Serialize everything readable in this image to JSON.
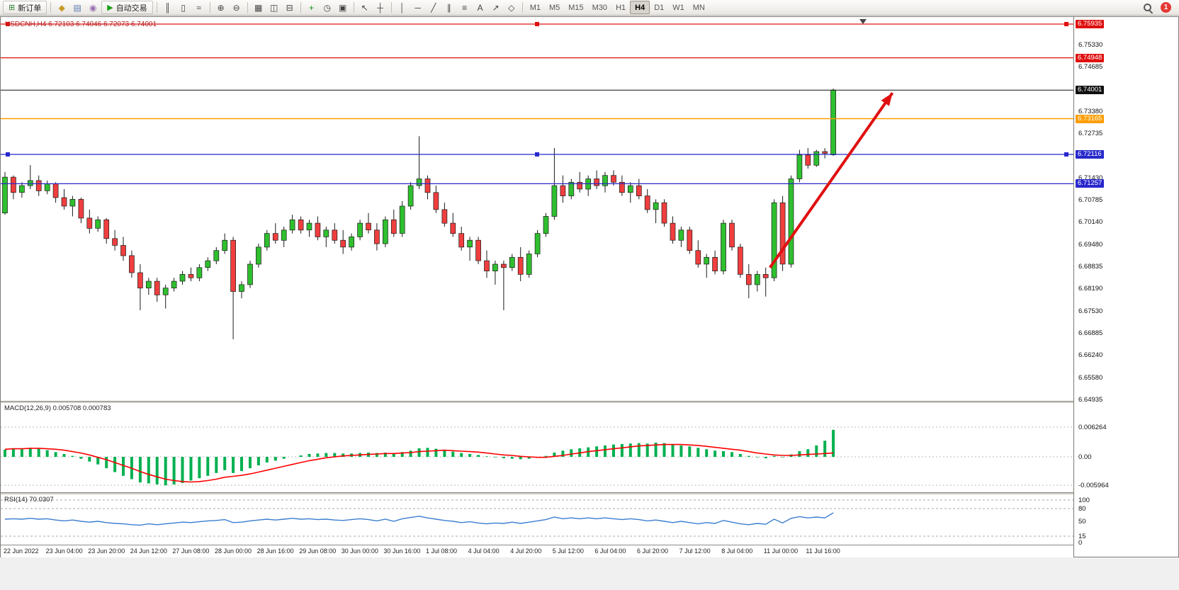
{
  "toolbar": {
    "new_order": "新订单",
    "auto_trading": "自动交易",
    "notification_count": "1",
    "timeframes": [
      "M1",
      "M5",
      "M15",
      "M30",
      "H1",
      "H4",
      "D1",
      "W1",
      "MN"
    ],
    "active_timeframe": "H4",
    "icon_groups": [
      {
        "name": "system-icons",
        "icons": [
          {
            "name": "market-watch-icon",
            "glyph": "◆",
            "color": "#c89b2a"
          },
          {
            "name": "data-window-icon",
            "glyph": "▤",
            "color": "#5a79b5"
          },
          {
            "name": "terminal-icon",
            "glyph": "◉",
            "color": "#9a6fb0"
          }
        ]
      },
      {
        "name": "chart-type-icons",
        "icons": [
          {
            "name": "bar-chart-icon",
            "glyph": "║",
            "color": "#444444"
          },
          {
            "name": "candlestick-chart-icon",
            "glyph": "▯",
            "color": "#444444"
          },
          {
            "name": "line-chart-icon",
            "glyph": "≈",
            "color": "#444444"
          }
        ]
      },
      {
        "name": "zoom-icons",
        "icons": [
          {
            "name": "zoom-in-icon",
            "glyph": "⊕",
            "color": "#444444"
          },
          {
            "name": "zoom-out-icon",
            "glyph": "⊖",
            "color": "#444444"
          }
        ]
      },
      {
        "name": "window-icons",
        "icons": [
          {
            "name": "tile-windows-icon",
            "glyph": "▦",
            "color": "#444444"
          },
          {
            "name": "cascade-windows-icon",
            "glyph": "◫",
            "color": "#444444"
          },
          {
            "name": "arrange-windows-icon",
            "glyph": "⊟",
            "color": "#444444"
          }
        ]
      },
      {
        "name": "indicator-icons",
        "icons": [
          {
            "name": "indicators-icon",
            "glyph": "+",
            "color": "#0b8f0b"
          },
          {
            "name": "periods-icon",
            "glyph": "◷",
            "color": "#444444"
          },
          {
            "name": "templates-icon",
            "glyph": "▣",
            "color": "#444444"
          }
        ]
      },
      {
        "name": "cursor-icons",
        "icons": [
          {
            "name": "cursor-icon",
            "glyph": "↖",
            "color": "#444444"
          },
          {
            "name": "crosshair-icon",
            "glyph": "┼",
            "color": "#444444"
          }
        ]
      },
      {
        "name": "drawing-icons",
        "icons": [
          {
            "name": "vertical-line-icon",
            "glyph": "│",
            "color": "#444444"
          },
          {
            "name": "horizontal-line-icon",
            "glyph": "─",
            "color": "#444444"
          },
          {
            "name": "trendline-icon",
            "glyph": "╱",
            "color": "#444444"
          },
          {
            "name": "channel-icon",
            "glyph": "∥",
            "color": "#444444"
          },
          {
            "name": "fibonacci-icon",
            "glyph": "≡",
            "color": "#444444"
          },
          {
            "name": "text-icon",
            "glyph": "A",
            "color": "#444444"
          },
          {
            "name": "arrows-icon",
            "glyph": "↗",
            "color": "#444444"
          },
          {
            "name": "shapes-icon",
            "glyph": "◇",
            "color": "#444444"
          }
        ]
      }
    ]
  },
  "chart": {
    "symbol_line": "USDCNH,H4 6.72103 6.74046 6.72073 6.74001",
    "scale": {
      "max": 6.75935,
      "min": 6.64935
    },
    "hlines": [
      {
        "price": 6.75935,
        "color": "#e01010",
        "selected": true,
        "badge": true,
        "width": 1.2
      },
      {
        "price": 6.74948,
        "color": "#e01010",
        "selected": false,
        "badge": true,
        "width": 1.2
      },
      {
        "price": 6.74001,
        "color": "#111111",
        "selected": false,
        "badge": true,
        "width": 1
      },
      {
        "price": 6.73165,
        "color": "#ff9d00",
        "selected": false,
        "badge": true,
        "width": 1.6
      },
      {
        "price": 6.72116,
        "color": "#2828cc",
        "selected": true,
        "badge": true,
        "width": 1.2
      },
      {
        "price": 6.71257,
        "color": "#2828cc",
        "selected": false,
        "badge": true,
        "width": 1.2
      }
    ],
    "price_ticks": [
      "6.75330",
      "6.74685",
      "6.73380",
      "6.72735",
      "6.71430",
      "6.70785",
      "6.70140",
      "6.69480",
      "6.68835",
      "6.68190",
      "6.67530",
      "6.66885",
      "6.66240",
      "6.65580",
      "6.64935"
    ]
  },
  "macd": {
    "label": "MACD(12,26,9) 0.005708 0.000783"
  },
  "rsi": {
    "label": "RSI(14) 70.0307"
  },
  "chart_data": {
    "type": "candlestick",
    "symbol": "USDCNH",
    "timeframe": "H4",
    "ohlc_current": {
      "open": 6.72103,
      "high": 6.74046,
      "low": 6.72073,
      "close": 6.74001
    },
    "colors": {
      "up": "#2fbf2f",
      "down": "#f03e3e",
      "wick": "#1a1a1a"
    },
    "x_labels": [
      "22 Jun 2022",
      "23 Jun 04:00",
      "23 Jun 20:00",
      "24 Jun 12:00",
      "27 Jun 08:00",
      "28 Jun 00:00",
      "28 Jun 16:00",
      "29 Jun 08:00",
      "30 Jun 00:00",
      "30 Jun 16:00",
      "1 Jul 08:00",
      "4 Jul 04:00",
      "4 Jul 20:00",
      "5 Jul 12:00",
      "6 Jul 04:00",
      "6 Jul 20:00",
      "7 Jul 12:00",
      "8 Jul 04:00",
      "11 Jul 00:00",
      "11 Jul 16:00"
    ],
    "candles": [
      [
        6.704,
        6.716,
        6.7035,
        6.7145
      ],
      [
        6.7145,
        6.715,
        6.708,
        6.71
      ],
      [
        6.71,
        6.713,
        6.7085,
        6.712
      ],
      [
        6.712,
        6.718,
        6.711,
        6.7135
      ],
      [
        6.7135,
        6.715,
        6.709,
        6.7105
      ],
      [
        6.7105,
        6.7135,
        6.7095,
        6.7125
      ],
      [
        6.7125,
        6.713,
        6.707,
        6.7085
      ],
      [
        6.7085,
        6.711,
        6.705,
        6.706
      ],
      [
        6.706,
        6.709,
        6.703,
        6.708
      ],
      [
        6.708,
        6.7085,
        6.701,
        6.7025
      ],
      [
        6.7025,
        6.705,
        6.698,
        6.6995
      ],
      [
        6.6995,
        6.703,
        6.6985,
        6.702
      ],
      [
        6.702,
        6.7025,
        6.695,
        6.6965
      ],
      [
        6.6965,
        6.699,
        6.693,
        6.6945
      ],
      [
        6.6945,
        6.697,
        6.69,
        6.6915
      ],
      [
        6.6915,
        6.693,
        6.685,
        6.6865
      ],
      [
        6.6865,
        6.689,
        6.6755,
        6.682
      ],
      [
        6.682,
        6.685,
        6.68,
        6.684
      ],
      [
        6.684,
        6.685,
        6.678,
        6.68
      ],
      [
        6.68,
        6.683,
        6.676,
        6.682
      ],
      [
        6.682,
        6.685,
        6.681,
        6.684
      ],
      [
        6.684,
        6.687,
        6.683,
        6.686
      ],
      [
        6.686,
        6.688,
        6.684,
        6.685
      ],
      [
        6.685,
        6.689,
        6.684,
        6.688
      ],
      [
        6.688,
        6.691,
        6.687,
        6.69
      ],
      [
        6.69,
        6.694,
        6.689,
        6.693
      ],
      [
        6.693,
        6.698,
        6.692,
        6.696
      ],
      [
        6.696,
        6.697,
        6.667,
        6.681
      ],
      [
        6.681,
        6.684,
        6.679,
        6.683
      ],
      [
        6.683,
        6.69,
        6.682,
        6.689
      ],
      [
        6.689,
        6.695,
        6.688,
        6.694
      ],
      [
        6.694,
        6.699,
        6.693,
        6.698
      ],
      [
        6.698,
        6.701,
        6.695,
        6.696
      ],
      [
        6.696,
        6.7,
        6.694,
        6.699
      ],
      [
        6.699,
        6.7035,
        6.698,
        6.702
      ],
      [
        6.702,
        6.703,
        6.698,
        6.699
      ],
      [
        6.699,
        6.702,
        6.697,
        6.701
      ],
      [
        6.701,
        6.703,
        6.696,
        6.697
      ],
      [
        6.697,
        6.7,
        6.694,
        6.699
      ],
      [
        6.699,
        6.701,
        6.695,
        6.696
      ],
      [
        6.696,
        6.699,
        6.692,
        6.694
      ],
      [
        6.694,
        6.698,
        6.693,
        6.697
      ],
      [
        6.697,
        6.702,
        6.696,
        6.701
      ],
      [
        6.701,
        6.704,
        6.698,
        6.699
      ],
      [
        6.699,
        6.701,
        6.693,
        6.695
      ],
      [
        6.695,
        6.703,
        6.694,
        6.702
      ],
      [
        6.702,
        6.705,
        6.697,
        6.698
      ],
      [
        6.698,
        6.7075,
        6.697,
        6.706
      ],
      [
        6.706,
        6.713,
        6.705,
        6.712
      ],
      [
        6.712,
        6.7265,
        6.711,
        6.714
      ],
      [
        6.714,
        6.715,
        6.708,
        6.71
      ],
      [
        6.71,
        6.712,
        6.704,
        6.705
      ],
      [
        6.705,
        6.707,
        6.7,
        6.701
      ],
      [
        6.701,
        6.704,
        6.697,
        6.698
      ],
      [
        6.698,
        6.7,
        6.693,
        6.694
      ],
      [
        6.694,
        6.697,
        6.69,
        6.696
      ],
      [
        6.696,
        6.697,
        6.689,
        6.69
      ],
      [
        6.69,
        6.693,
        6.685,
        6.687
      ],
      [
        6.687,
        6.69,
        6.683,
        6.689
      ],
      [
        6.689,
        6.69,
        6.6755,
        6.688
      ],
      [
        6.688,
        6.692,
        6.687,
        6.691
      ],
      [
        6.691,
        6.694,
        6.684,
        6.686
      ],
      [
        6.686,
        6.693,
        6.685,
        6.692
      ],
      [
        6.692,
        6.699,
        6.691,
        6.698
      ],
      [
        6.698,
        6.704,
        6.697,
        6.703
      ],
      [
        6.703,
        6.723,
        6.702,
        6.712
      ],
      [
        6.712,
        6.715,
        6.707,
        6.709
      ],
      [
        6.709,
        6.714,
        6.708,
        6.713
      ],
      [
        6.713,
        6.716,
        6.71,
        6.711
      ],
      [
        6.711,
        6.715,
        6.709,
        6.714
      ],
      [
        6.714,
        6.7165,
        6.711,
        6.712
      ],
      [
        6.712,
        6.716,
        6.71,
        6.715
      ],
      [
        6.715,
        6.7165,
        6.712,
        6.713
      ],
      [
        6.713,
        6.715,
        6.709,
        6.71
      ],
      [
        6.71,
        6.713,
        6.707,
        6.712
      ],
      [
        6.712,
        6.714,
        6.708,
        6.709
      ],
      [
        6.709,
        6.711,
        6.704,
        6.705
      ],
      [
        6.705,
        6.708,
        6.701,
        6.707
      ],
      [
        6.707,
        6.708,
        6.7,
        6.701
      ],
      [
        6.701,
        6.703,
        6.695,
        6.696
      ],
      [
        6.696,
        6.7,
        6.694,
        6.699
      ],
      [
        6.699,
        6.7,
        6.692,
        6.693
      ],
      [
        6.693,
        6.696,
        6.688,
        6.689
      ],
      [
        6.689,
        6.692,
        6.685,
        6.691
      ],
      [
        6.691,
        6.693,
        6.686,
        6.687
      ],
      [
        6.687,
        6.702,
        6.686,
        6.701
      ],
      [
        6.701,
        6.702,
        6.693,
        6.694
      ],
      [
        6.694,
        6.695,
        6.685,
        6.686
      ],
      [
        6.686,
        6.689,
        6.679,
        6.683
      ],
      [
        6.683,
        6.687,
        6.681,
        6.686
      ],
      [
        6.686,
        6.688,
        6.6795,
        6.685
      ],
      [
        6.685,
        6.708,
        6.684,
        6.707
      ],
      [
        6.707,
        6.709,
        6.687,
        6.689
      ],
      [
        6.689,
        6.715,
        6.688,
        6.714
      ],
      [
        6.714,
        6.7225,
        6.713,
        6.721
      ],
      [
        6.721,
        6.723,
        6.717,
        6.718
      ],
      [
        6.718,
        6.7225,
        6.7175,
        6.722
      ],
      [
        6.722,
        6.723,
        6.72,
        6.7215
      ],
      [
        6.72103,
        6.74046,
        6.72073,
        6.74001
      ]
    ],
    "macd": {
      "params": "12,26,9",
      "value": 0.005708,
      "signal_value": 0.000783,
      "histogram_color": "#00b050",
      "signal_color": "#ff0000",
      "ticks": [
        {
          "label": "0.006264",
          "value": 0.006264
        },
        {
          "label": "0.00",
          "value": 0
        },
        {
          "label": "-0.005964",
          "value": -0.005964
        }
      ],
      "histogram": [
        0.0015,
        0.0018,
        0.0016,
        0.0019,
        0.0017,
        0.0014,
        0.001,
        0.0006,
        0.0002,
        -0.0004,
        -0.001,
        -0.0016,
        -0.0024,
        -0.0032,
        -0.004,
        -0.0047,
        -0.0054,
        -0.0056,
        -0.0058,
        -0.006,
        -0.0058,
        -0.0055,
        -0.005,
        -0.0045,
        -0.004,
        -0.0034,
        -0.0028,
        -0.0034,
        -0.003,
        -0.0024,
        -0.0018,
        -0.0012,
        -0.0008,
        -0.0004,
        0.0,
        0.0003,
        0.0006,
        0.0007,
        0.0008,
        0.0008,
        0.0007,
        0.0007,
        0.0008,
        0.0009,
        0.0008,
        0.0009,
        0.0008,
        0.001,
        0.0013,
        0.0018,
        0.0019,
        0.0017,
        0.0014,
        0.0011,
        0.0008,
        0.0006,
        0.0004,
        0.0001,
        -0.0001,
        -0.0003,
        -0.0004,
        -0.0005,
        -0.0004,
        -0.0002,
        0.0002,
        0.0009,
        0.0013,
        0.0016,
        0.0018,
        0.002,
        0.0022,
        0.0024,
        0.0026,
        0.0027,
        0.0028,
        0.0029,
        0.0028,
        0.003,
        0.0029,
        0.0026,
        0.0024,
        0.0022,
        0.0019,
        0.0016,
        0.0013,
        0.0012,
        0.001,
        0.0006,
        0.0002,
        -0.0001,
        -0.0003,
        0.0002,
        -0.0001,
        0.0005,
        0.0012,
        0.0016,
        0.0024,
        0.0034,
        0.0057
      ],
      "signal": [
        0.0016,
        0.0017,
        0.0017,
        0.0018,
        0.0018,
        0.0017,
        0.0016,
        0.0014,
        0.0011,
        0.0008,
        0.0004,
        -0.0001,
        -0.0006,
        -0.0012,
        -0.0018,
        -0.0024,
        -0.0031,
        -0.0037,
        -0.0042,
        -0.0047,
        -0.005,
        -0.0052,
        -0.0053,
        -0.0052,
        -0.005,
        -0.0047,
        -0.0043,
        -0.0041,
        -0.0039,
        -0.0036,
        -0.0032,
        -0.0028,
        -0.0024,
        -0.002,
        -0.0016,
        -0.0012,
        -0.0008,
        -0.0005,
        -0.0002,
        0.0,
        0.0002,
        0.0003,
        0.0004,
        0.0005,
        0.0006,
        0.0007,
        0.0007,
        0.0008,
        0.0009,
        0.0011,
        0.0012,
        0.0013,
        0.0014,
        0.0013,
        0.0012,
        0.0011,
        0.001,
        0.0008,
        0.0006,
        0.0004,
        0.0003,
        0.0001,
        0.0,
        -0.0001,
        -0.0001,
        0.0001,
        0.0003,
        0.0006,
        0.0008,
        0.0011,
        0.0013,
        0.0015,
        0.0017,
        0.0019,
        0.0021,
        0.0023,
        0.0024,
        0.0025,
        0.0026,
        0.0026,
        0.0026,
        0.0025,
        0.0024,
        0.0022,
        0.002,
        0.0018,
        0.0016,
        0.0014,
        0.0011,
        0.0008,
        0.0006,
        0.0004,
        0.0003,
        0.0003,
        0.0004,
        0.0005,
        0.0006,
        0.0007,
        0.0008
      ]
    },
    "rsi": {
      "period": 14,
      "value": 70.0307,
      "line_color": "#3a7ed0",
      "levels": [
        100,
        80,
        15
      ],
      "ticks": [
        {
          "label": "100",
          "value": 100
        },
        {
          "label": "80",
          "value": 80
        },
        {
          "label": "50",
          "value": 50
        },
        {
          "label": "15",
          "value": 15
        },
        {
          "label": "0",
          "value": 0
        }
      ],
      "values": [
        55,
        56,
        55,
        57,
        55,
        56,
        53,
        51,
        53,
        50,
        48,
        50,
        47,
        45,
        44,
        42,
        41,
        44,
        42,
        44,
        46,
        48,
        47,
        49,
        51,
        52,
        54,
        47,
        48,
        51,
        53,
        55,
        53,
        55,
        57,
        55,
        56,
        54,
        55,
        53,
        52,
        54,
        56,
        54,
        51,
        55,
        50,
        56,
        59,
        62,
        58,
        55,
        52,
        50,
        47,
        49,
        46,
        44,
        46,
        45,
        48,
        45,
        48,
        51,
        54,
        60,
        56,
        58,
        56,
        58,
        56,
        58,
        56,
        54,
        56,
        54,
        51,
        53,
        50,
        47,
        50,
        47,
        44,
        47,
        45,
        52,
        48,
        44,
        42,
        45,
        43,
        55,
        46,
        57,
        61,
        58,
        60,
        58,
        70
      ]
    },
    "annotations": [
      {
        "type": "arrow",
        "from_index": 90.5,
        "from_price": 6.688,
        "to_index": 105,
        "to_price": 6.7392,
        "color": "#e01010"
      }
    ]
  }
}
